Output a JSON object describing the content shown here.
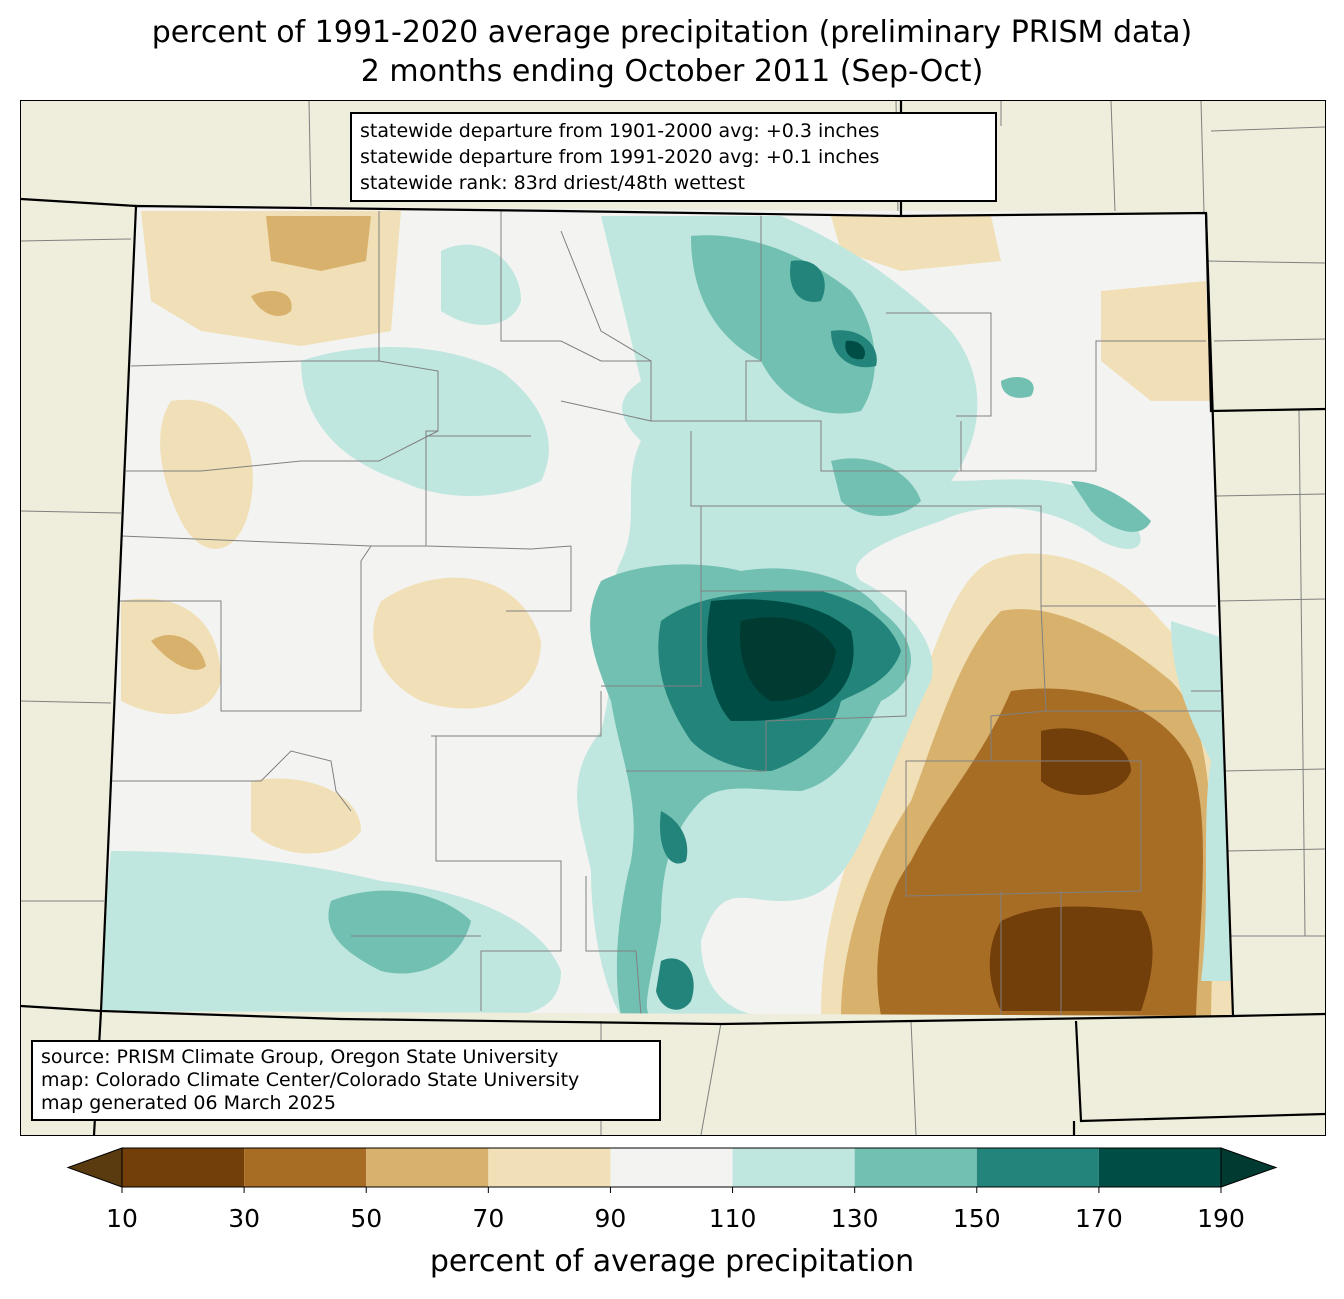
{
  "title": {
    "line1": "percent of 1991-2020 average precipitation (preliminary PRISM data)",
    "line2": "2 months ending October 2011 (Sep-Oct)"
  },
  "stats": {
    "line1": "statewide departure from 1901-2000 avg: +0.3 inches",
    "line2": "statewide departure from 1991-2020 avg: +0.1 inches",
    "line3": "statewide rank: 83rd driest/48th wettest"
  },
  "source": {
    "line1": "source: PRISM Climate Group, Oregon State University",
    "line2": "map: Colorado Climate Center/Colorado State University",
    "line3": "map generated 06 March 2025"
  },
  "colorbar": {
    "label": "percent of average precipitation",
    "ticks": [
      "10",
      "30",
      "50",
      "70",
      "90",
      "110",
      "130",
      "150",
      "170",
      "190"
    ],
    "colors": [
      "#5a3a0f",
      "#723f0a",
      "#a86d25",
      "#d8b26d",
      "#f1e0b7",
      "#f3f3f1",
      "#bfe6df",
      "#72c0b2",
      "#22847a",
      "#004d45",
      "#003a30"
    ]
  },
  "map_colors": {
    "background": "#efeddb",
    "boundary": "#808080",
    "state_line": "#000000"
  }
}
